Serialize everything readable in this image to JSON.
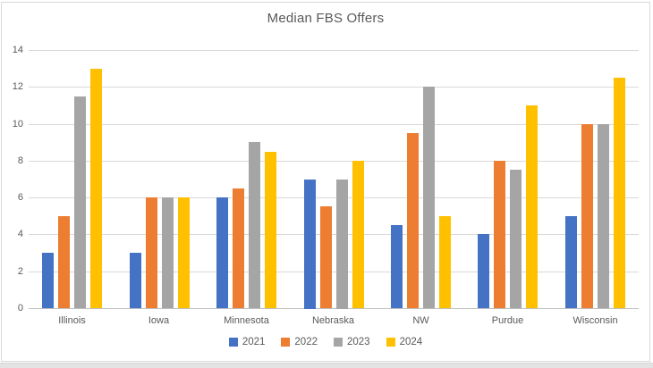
{
  "title": "Median FBS Offers",
  "chart_data": {
    "type": "bar",
    "title": "Median FBS Offers",
    "xlabel": "",
    "ylabel": "",
    "categories": [
      "Illinois",
      "Iowa",
      "Minnesota",
      "Nebraska",
      "NW",
      "Purdue",
      "Wisconsin"
    ],
    "series": [
      {
        "name": "2021",
        "color": "#4472C4",
        "values": [
          3,
          3,
          6,
          7,
          4.5,
          4,
          5
        ]
      },
      {
        "name": "2022",
        "color": "#ED7D31",
        "values": [
          5,
          6,
          6.5,
          5.5,
          9.5,
          8,
          10
        ]
      },
      {
        "name": "2023",
        "color": "#A5A5A5",
        "values": [
          11.5,
          6,
          9,
          7,
          12,
          7.5,
          10
        ]
      },
      {
        "name": "2024",
        "color": "#FFC000",
        "values": [
          13,
          6,
          8.5,
          8,
          5,
          11,
          12.5
        ]
      }
    ],
    "ylim": [
      0,
      14
    ],
    "yticks": [
      0,
      2,
      4,
      6,
      8,
      10,
      12,
      14
    ],
    "grid": true,
    "legend_position": "bottom",
    "legend_entries": [
      "2021",
      "2022",
      "2023",
      "2024"
    ]
  },
  "colors": {
    "title_text": "#595959",
    "axis_text": "#595959",
    "gridline": "#D9D9D9",
    "axis_line": "#BFBFBF",
    "chart_border": "#D9D9D9",
    "background": "#FFFFFF"
  }
}
